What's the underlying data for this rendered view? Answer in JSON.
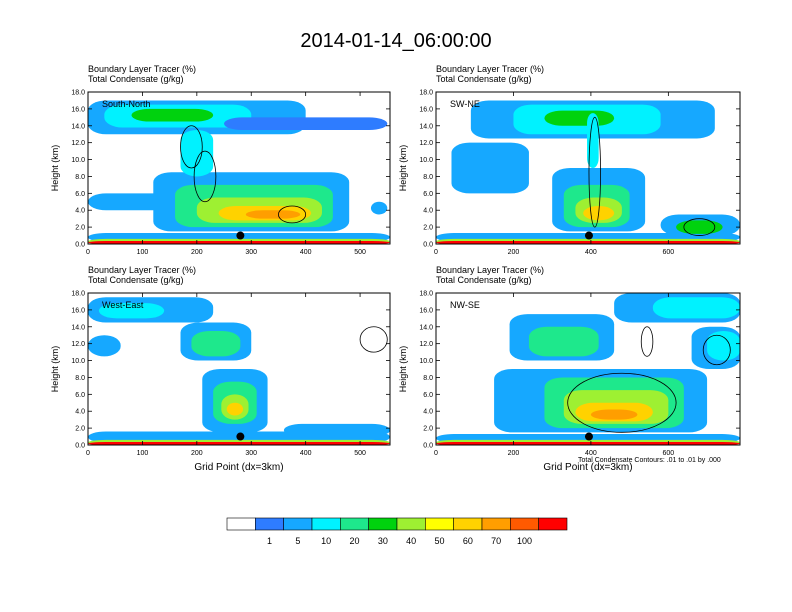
{
  "figure": {
    "title": "2014-01-14_06:00:00",
    "contour_note": "Total Condensate Contours: .01 to .01 by .000"
  },
  "colorbar": {
    "colors": [
      "#ffffff",
      "#2e7cff",
      "#16a8ff",
      "#00f2ff",
      "#1ee88c",
      "#00d20e",
      "#9ef032",
      "#ffff00",
      "#ffd200",
      "#ff9e00",
      "#ff5a00",
      "#ff0000"
    ],
    "labels": [
      "1",
      "5",
      "10",
      "20",
      "30",
      "40",
      "50",
      "60",
      "70",
      "100"
    ]
  },
  "chart_data": [
    {
      "type": "heatmap",
      "title_lines": [
        "Boundary Layer Tracer   (%)",
        "Total Condensate   (g/kg)"
      ],
      "region_label": "South-North",
      "ylabel": "Height (km)",
      "xlabel": "",
      "xlim": [
        0,
        555
      ],
      "ylim": [
        0,
        18
      ],
      "xticks": [
        0,
        100,
        200,
        300,
        400,
        500
      ],
      "yticks": [
        "0.0",
        "2.0",
        "4.0",
        "6.0",
        "8.0",
        "10.0",
        "12.0",
        "14.0",
        "16.0",
        "18.0"
      ],
      "marker": {
        "x": 280,
        "y": 1.0
      },
      "fields": [
        {
          "level": 2,
          "x": [
            0,
            555
          ],
          "y": [
            0.3,
            1.3
          ]
        },
        {
          "level": 6,
          "x": [
            0,
            555
          ],
          "y": [
            0.0,
            0.6
          ]
        },
        {
          "level": 11,
          "x": [
            0,
            555
          ],
          "y": [
            0.0,
            0.35
          ]
        },
        {
          "level": 2,
          "x": [
            0,
            400
          ],
          "y": [
            13.0,
            17.0
          ]
        },
        {
          "level": 3,
          "x": [
            30,
            300
          ],
          "y": [
            13.8,
            16.5
          ]
        },
        {
          "level": 5,
          "x": [
            80,
            230
          ],
          "y": [
            14.5,
            16.0
          ]
        },
        {
          "level": 1,
          "x": [
            250,
            550
          ],
          "y": [
            13.5,
            15.0
          ]
        },
        {
          "level": 2,
          "x": [
            0,
            260
          ],
          "y": [
            4.0,
            6.0
          ]
        },
        {
          "level": 2,
          "x": [
            120,
            480
          ],
          "y": [
            1.5,
            8.5
          ]
        },
        {
          "level": 4,
          "x": [
            160,
            450
          ],
          "y": [
            2.0,
            7.0
          ]
        },
        {
          "level": 6,
          "x": [
            200,
            430
          ],
          "y": [
            2.5,
            5.5
          ]
        },
        {
          "level": 8,
          "x": [
            240,
            410
          ],
          "y": [
            2.8,
            4.5
          ]
        },
        {
          "level": 9,
          "x": [
            290,
            390
          ],
          "y": [
            3.0,
            4.0
          ]
        },
        {
          "level": 3,
          "x": [
            170,
            230
          ],
          "y": [
            8.0,
            13.5
          ]
        },
        {
          "level": 2,
          "x": [
            520,
            550
          ],
          "y": [
            3.5,
            5.0
          ]
        }
      ],
      "contours": [
        {
          "x": [
            170,
            210
          ],
          "y": [
            9.0,
            14.0
          ]
        },
        {
          "x": [
            195,
            235
          ],
          "y": [
            5.0,
            11.0
          ]
        },
        {
          "x": [
            350,
            400
          ],
          "y": [
            2.5,
            4.5
          ]
        }
      ]
    },
    {
      "type": "heatmap",
      "title_lines": [
        "Boundary Layer Tracer   (%)",
        "Total Condensate   (g/kg)"
      ],
      "region_label": "SW-NE",
      "ylabel": "Height (km)",
      "xlabel": "",
      "xlim": [
        0,
        785
      ],
      "ylim": [
        0,
        18
      ],
      "xticks": [
        0,
        200,
        400,
        600
      ],
      "yticks": [
        "0.0",
        "2.0",
        "4.0",
        "6.0",
        "8.0",
        "10.0",
        "12.0",
        "14.0",
        "16.0",
        "18.0"
      ],
      "marker": {
        "x": 395,
        "y": 1.0
      },
      "fields": [
        {
          "level": 2,
          "x": [
            0,
            785
          ],
          "y": [
            0.3,
            1.3
          ]
        },
        {
          "level": 6,
          "x": [
            0,
            785
          ],
          "y": [
            0.0,
            0.6
          ]
        },
        {
          "level": 11,
          "x": [
            0,
            785
          ],
          "y": [
            0.0,
            0.35
          ]
        },
        {
          "level": 2,
          "x": [
            90,
            720
          ],
          "y": [
            12.5,
            17.0
          ]
        },
        {
          "level": 3,
          "x": [
            200,
            580
          ],
          "y": [
            13.0,
            16.5
          ]
        },
        {
          "level": 5,
          "x": [
            280,
            460
          ],
          "y": [
            14.0,
            15.8
          ]
        },
        {
          "level": 2,
          "x": [
            40,
            240
          ],
          "y": [
            6.0,
            12.0
          ]
        },
        {
          "level": 2,
          "x": [
            300,
            540
          ],
          "y": [
            1.5,
            9.0
          ]
        },
        {
          "level": 4,
          "x": [
            330,
            500
          ],
          "y": [
            2.0,
            7.0
          ]
        },
        {
          "level": 6,
          "x": [
            360,
            480
          ],
          "y": [
            2.5,
            5.5
          ]
        },
        {
          "level": 8,
          "x": [
            380,
            460
          ],
          "y": [
            2.8,
            4.5
          ]
        },
        {
          "level": 3,
          "x": [
            390,
            420
          ],
          "y": [
            9.0,
            15.5
          ]
        },
        {
          "level": 2,
          "x": [
            580,
            785
          ],
          "y": [
            1.0,
            3.5
          ]
        },
        {
          "level": 5,
          "x": [
            620,
            740
          ],
          "y": [
            1.2,
            2.8
          ]
        }
      ],
      "contours": [
        {
          "x": [
            395,
            425
          ],
          "y": [
            2.0,
            15.0
          ]
        },
        {
          "x": [
            640,
            720
          ],
          "y": [
            1.0,
            3.0
          ]
        }
      ]
    },
    {
      "type": "heatmap",
      "title_lines": [
        "Boundary Layer Tracer   (%)",
        "Total Condensate   (g/kg)"
      ],
      "region_label": "West-East",
      "ylabel": "Height (km)",
      "xlabel": "Grid Point (dx=3km)",
      "xlim": [
        0,
        555
      ],
      "ylim": [
        0,
        18
      ],
      "xticks": [
        0,
        100,
        200,
        300,
        400,
        500
      ],
      "yticks": [
        "0.0",
        "2.0",
        "4.0",
        "6.0",
        "8.0",
        "10.0",
        "12.0",
        "14.0",
        "16.0",
        "18.0"
      ],
      "marker": {
        "x": 280,
        "y": 1.0
      },
      "fields": [
        {
          "level": 2,
          "x": [
            0,
            555
          ],
          "y": [
            0.3,
            1.6
          ]
        },
        {
          "level": 6,
          "x": [
            0,
            555
          ],
          "y": [
            0.0,
            0.6
          ]
        },
        {
          "level": 11,
          "x": [
            0,
            555
          ],
          "y": [
            0.0,
            0.35
          ]
        },
        {
          "level": 2,
          "x": [
            0,
            230
          ],
          "y": [
            14.5,
            17.5
          ]
        },
        {
          "level": 3,
          "x": [
            20,
            140
          ],
          "y": [
            15.0,
            16.8
          ]
        },
        {
          "level": 2,
          "x": [
            170,
            300
          ],
          "y": [
            10.0,
            14.5
          ]
        },
        {
          "level": 4,
          "x": [
            190,
            280
          ],
          "y": [
            10.5,
            13.5
          ]
        },
        {
          "level": 2,
          "x": [
            0,
            60
          ],
          "y": [
            10.5,
            13.0
          ]
        },
        {
          "level": 2,
          "x": [
            210,
            330
          ],
          "y": [
            1.5,
            9.0
          ]
        },
        {
          "level": 4,
          "x": [
            230,
            310
          ],
          "y": [
            2.5,
            7.5
          ]
        },
        {
          "level": 6,
          "x": [
            245,
            295
          ],
          "y": [
            3.0,
            6.0
          ]
        },
        {
          "level": 8,
          "x": [
            255,
            285
          ],
          "y": [
            3.5,
            5.0
          ]
        },
        {
          "level": 2,
          "x": [
            360,
            555
          ],
          "y": [
            1.0,
            2.5
          ]
        }
      ],
      "contours": [
        {
          "x": [
            500,
            550
          ],
          "y": [
            11.0,
            14.0
          ]
        }
      ]
    },
    {
      "type": "heatmap",
      "title_lines": [
        "Boundary Layer Tracer   (%)",
        "Total Condensate   (g/kg)"
      ],
      "region_label": "NW-SE",
      "ylabel": "Height (km)",
      "xlabel": "Grid Point (dx=3km)",
      "xlim": [
        0,
        785
      ],
      "ylim": [
        0,
        18
      ],
      "xticks": [
        0,
        200,
        400,
        600
      ],
      "yticks": [
        "0.0",
        "2.0",
        "4.0",
        "6.0",
        "8.0",
        "10.0",
        "12.0",
        "14.0",
        "16.0",
        "18.0"
      ],
      "marker": {
        "x": 395,
        "y": 1.0
      },
      "fields": [
        {
          "level": 2,
          "x": [
            0,
            785
          ],
          "y": [
            0.3,
            1.3
          ]
        },
        {
          "level": 6,
          "x": [
            0,
            785
          ],
          "y": [
            0.0,
            0.6
          ]
        },
        {
          "level": 11,
          "x": [
            0,
            785
          ],
          "y": [
            0.0,
            0.35
          ]
        },
        {
          "level": 2,
          "x": [
            190,
            460
          ],
          "y": [
            10.0,
            15.5
          ]
        },
        {
          "level": 4,
          "x": [
            240,
            420
          ],
          "y": [
            10.5,
            14.0
          ]
        },
        {
          "level": 2,
          "x": [
            460,
            785
          ],
          "y": [
            14.5,
            18.0
          ]
        },
        {
          "level": 3,
          "x": [
            560,
            785
          ],
          "y": [
            15.0,
            17.5
          ]
        },
        {
          "level": 2,
          "x": [
            660,
            785
          ],
          "y": [
            9.0,
            14.0
          ]
        },
        {
          "level": 3,
          "x": [
            700,
            785
          ],
          "y": [
            10.0,
            13.5
          ]
        },
        {
          "level": 2,
          "x": [
            150,
            700
          ],
          "y": [
            1.5,
            9.0
          ]
        },
        {
          "level": 4,
          "x": [
            280,
            640
          ],
          "y": [
            2.0,
            8.0
          ]
        },
        {
          "level": 6,
          "x": [
            330,
            600
          ],
          "y": [
            2.5,
            6.5
          ]
        },
        {
          "level": 8,
          "x": [
            360,
            560
          ],
          "y": [
            2.8,
            5.0
          ]
        },
        {
          "level": 9,
          "x": [
            400,
            520
          ],
          "y": [
            3.0,
            4.2
          ]
        }
      ],
      "contours": [
        {
          "x": [
            340,
            620
          ],
          "y": [
            1.5,
            8.5
          ]
        },
        {
          "x": [
            690,
            760
          ],
          "y": [
            9.5,
            13.0
          ]
        },
        {
          "x": [
            530,
            560
          ],
          "y": [
            10.5,
            14.0
          ]
        }
      ]
    }
  ]
}
